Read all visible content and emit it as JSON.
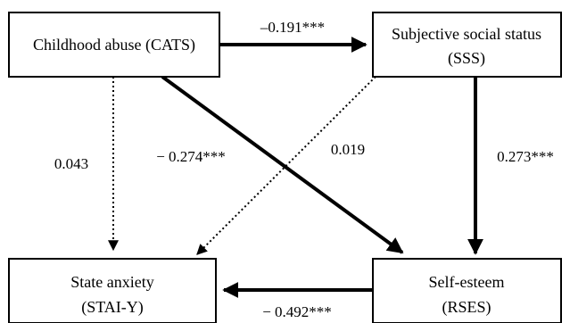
{
  "nodes": {
    "cats": {
      "line1": "Childhood abuse (CATS)"
    },
    "sss": {
      "line1": "Subjective social status",
      "line2": "(SSS)"
    },
    "stai": {
      "line1": "State anxiety",
      "line2": "(STAI-Y)"
    },
    "rses": {
      "line1": "Self-esteem",
      "line2": "(RSES)"
    }
  },
  "paths": {
    "cats_to_sss": {
      "coef": "–0.191***",
      "style": "solid"
    },
    "cats_to_stai": {
      "coef": "0.043",
      "style": "dotted"
    },
    "cats_to_rses": {
      "coef": "− 0.274***",
      "style": "solid"
    },
    "sss_to_stai": {
      "coef": "0.019",
      "style": "dotted"
    },
    "sss_to_rses": {
      "coef": "0.273***",
      "style": "solid"
    },
    "rses_to_stai": {
      "coef": "− 0.492***",
      "style": "solid"
    }
  },
  "colors": {
    "stroke": "#000000",
    "background": "#ffffff"
  }
}
